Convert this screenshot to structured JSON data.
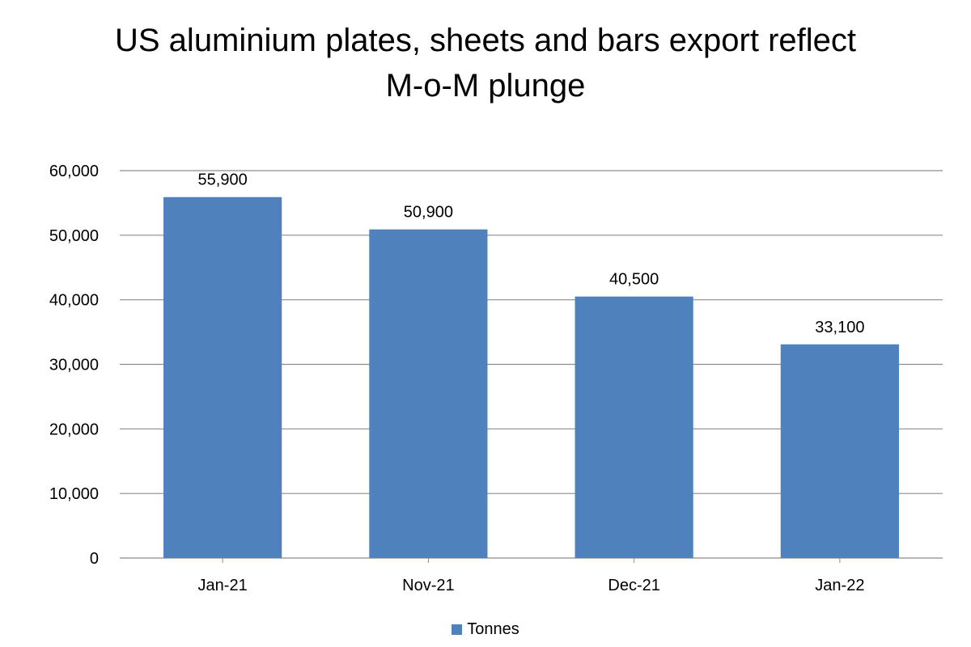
{
  "chart_data": {
    "type": "bar",
    "title_lines": [
      "US aluminium plates, sheets and bars export reflect",
      "M-o-M plunge"
    ],
    "categories": [
      "Jan-21",
      "Nov-21",
      "Dec-21",
      "Jan-22"
    ],
    "series": [
      {
        "name": "Tonnes",
        "values": [
          55900,
          50900,
          40500,
          33100
        ],
        "color": "#4f81bd"
      }
    ],
    "data_labels": [
      "55,900",
      "50,900",
      "40,500",
      "33,100"
    ],
    "y_ticks": [
      "0",
      "10,000",
      "20,000",
      "30,000",
      "40,000",
      "50,000",
      "60,000"
    ],
    "ylim": [
      0,
      60000
    ],
    "ystep": 10000,
    "xlabel": "",
    "ylabel": "",
    "grid": true,
    "legend_position": "bottom"
  },
  "colors": {
    "bar": "#4f81bd",
    "grid": "#8c8c8c",
    "text": "#000000"
  }
}
